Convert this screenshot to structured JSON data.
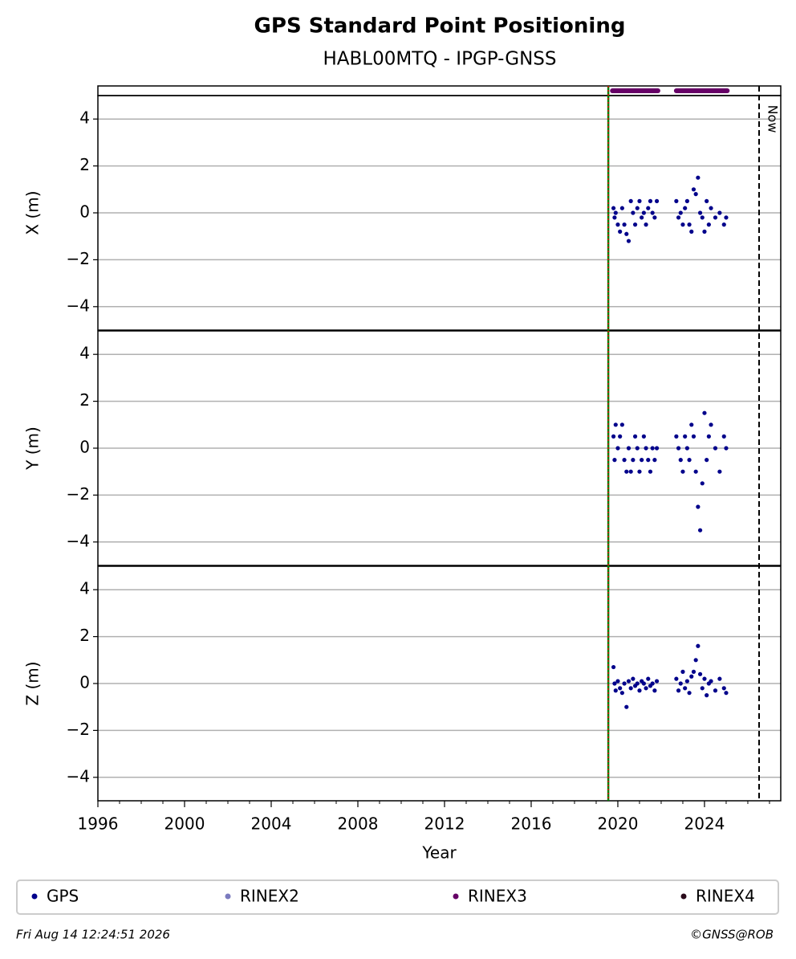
{
  "title": "GPS Standard Point Positioning",
  "subtitle": "HABL00MTQ - IPGP-GNSS",
  "events": [
    {
      "x": 2019.56,
      "color": "#008000"
    },
    {
      "x": 2026.52,
      "label": "Now",
      "color": "#000000"
    }
  ],
  "availability": {
    "name": "RINEX3",
    "color": "#660066",
    "intervals": [
      [
        2019.75,
        2021.85
      ],
      [
        2022.7,
        2025.05
      ]
    ]
  },
  "legend": [
    {
      "name": "GPS",
      "color": "#00008b"
    },
    {
      "name": "RINEX2",
      "color": "#7b7bbf"
    },
    {
      "name": "RINEX3",
      "color": "#660066"
    },
    {
      "name": "RINEX4",
      "color": "#2a0a1a"
    }
  ],
  "footer_left": "Fri Aug 14 12:24:51 2026",
  "footer_right": "©GNSS@ROB",
  "chart_data": [
    {
      "type": "scatter",
      "ylabel": "X (m)",
      "ylim": [
        -5,
        5
      ],
      "grid": true,
      "yticks": [
        {
          "value": -4,
          "label": "−4"
        },
        {
          "value": -2,
          "label": "−2"
        },
        0,
        2,
        4
      ],
      "x": [
        2019.8,
        2019.85,
        2019.9,
        2020.0,
        2020.1,
        2020.2,
        2020.3,
        2020.4,
        2020.5,
        2020.6,
        2020.7,
        2020.8,
        2020.9,
        2021.0,
        2021.1,
        2021.2,
        2021.3,
        2021.4,
        2021.5,
        2021.6,
        2021.7,
        2021.8,
        2022.7,
        2022.8,
        2022.9,
        2023.0,
        2023.1,
        2023.2,
        2023.3,
        2023.4,
        2023.5,
        2023.6,
        2023.7,
        2023.8,
        2023.9,
        2024.0,
        2024.1,
        2024.2,
        2024.3,
        2024.5,
        2024.7,
        2024.9,
        2025.0
      ],
      "series": [
        {
          "name": "GPS",
          "color": "#00008b",
          "values": [
            0.2,
            -0.2,
            0,
            -0.5,
            -0.8,
            0.2,
            -0.5,
            -0.9,
            -1.2,
            0.5,
            0,
            -0.5,
            0.2,
            0.5,
            -0.2,
            0,
            -0.5,
            0.2,
            0.5,
            0,
            -0.2,
            0.5,
            0.5,
            -0.2,
            0,
            -0.5,
            0.2,
            0.5,
            -0.5,
            -0.8,
            1.0,
            0.8,
            1.5,
            0,
            -0.2,
            -0.8,
            0.5,
            -0.5,
            0.2,
            -0.2,
            0,
            -0.5,
            -0.2
          ]
        }
      ]
    },
    {
      "type": "scatter",
      "ylabel": "Y (m)",
      "ylim": [
        -5,
        5
      ],
      "grid": true,
      "yticks": [
        {
          "value": -4,
          "label": "−4"
        },
        {
          "value": -2,
          "label": "−2"
        },
        0,
        2,
        4
      ],
      "x": [
        2019.8,
        2019.85,
        2019.9,
        2020.0,
        2020.1,
        2020.2,
        2020.3,
        2020.4,
        2020.5,
        2020.6,
        2020.7,
        2020.8,
        2020.9,
        2021.0,
        2021.1,
        2021.2,
        2021.3,
        2021.4,
        2021.5,
        2021.6,
        2021.7,
        2021.8,
        2022.7,
        2022.8,
        2022.9,
        2023.0,
        2023.1,
        2023.2,
        2023.3,
        2023.4,
        2023.5,
        2023.6,
        2023.7,
        2023.8,
        2023.9,
        2024.0,
        2024.1,
        2024.2,
        2024.3,
        2024.5,
        2024.7,
        2024.9,
        2025.0
      ],
      "series": [
        {
          "name": "GPS",
          "color": "#00008b",
          "values": [
            0.5,
            -0.5,
            1.0,
            0,
            0.5,
            1.0,
            -0.5,
            -1.0,
            0,
            -1.0,
            -0.5,
            0.5,
            0,
            -1.0,
            -0.5,
            0.5,
            0,
            -0.5,
            -1.0,
            0,
            -0.5,
            0,
            0.5,
            0,
            -0.5,
            -1.0,
            0.5,
            0,
            -0.5,
            1.0,
            0.5,
            -1.0,
            -2.5,
            -3.5,
            -1.5,
            1.5,
            -0.5,
            0.5,
            1.0,
            0,
            -1.0,
            0.5,
            0
          ]
        }
      ]
    },
    {
      "type": "scatter",
      "ylabel": "Z (m)",
      "ylim": [
        -5,
        5
      ],
      "grid": true,
      "yticks": [
        {
          "value": -4,
          "label": "−4"
        },
        {
          "value": -2,
          "label": "−2"
        },
        0,
        2,
        4
      ],
      "xlabel": "Year",
      "xlim": [
        1996,
        2027.52
      ],
      "xticks": [
        1996,
        2000,
        2004,
        2008,
        2012,
        2016,
        2020,
        2024
      ],
      "x": [
        2019.8,
        2019.85,
        2019.9,
        2020.0,
        2020.1,
        2020.2,
        2020.3,
        2020.4,
        2020.5,
        2020.6,
        2020.7,
        2020.8,
        2020.9,
        2021.0,
        2021.1,
        2021.2,
        2021.3,
        2021.4,
        2021.5,
        2021.6,
        2021.7,
        2021.8,
        2022.7,
        2022.8,
        2022.9,
        2023.0,
        2023.1,
        2023.2,
        2023.3,
        2023.4,
        2023.5,
        2023.6,
        2023.7,
        2023.8,
        2023.9,
        2024.0,
        2024.1,
        2024.2,
        2024.3,
        2024.5,
        2024.7,
        2024.9,
        2025.0
      ],
      "series": [
        {
          "name": "GPS",
          "color": "#00008b",
          "values": [
            0.7,
            0,
            -0.3,
            0.1,
            -0.2,
            -0.4,
            0,
            -1.0,
            0.1,
            -0.2,
            0.2,
            -0.1,
            0,
            -0.3,
            0.1,
            0,
            -0.2,
            0.2,
            -0.1,
            0,
            -0.3,
            0.1,
            0.2,
            -0.3,
            0,
            0.5,
            -0.2,
            0.1,
            -0.4,
            0.3,
            0.5,
            1.0,
            1.6,
            0.4,
            -0.2,
            0.2,
            -0.5,
            0,
            0.1,
            -0.3,
            0.2,
            -0.2,
            -0.4
          ]
        }
      ]
    }
  ]
}
